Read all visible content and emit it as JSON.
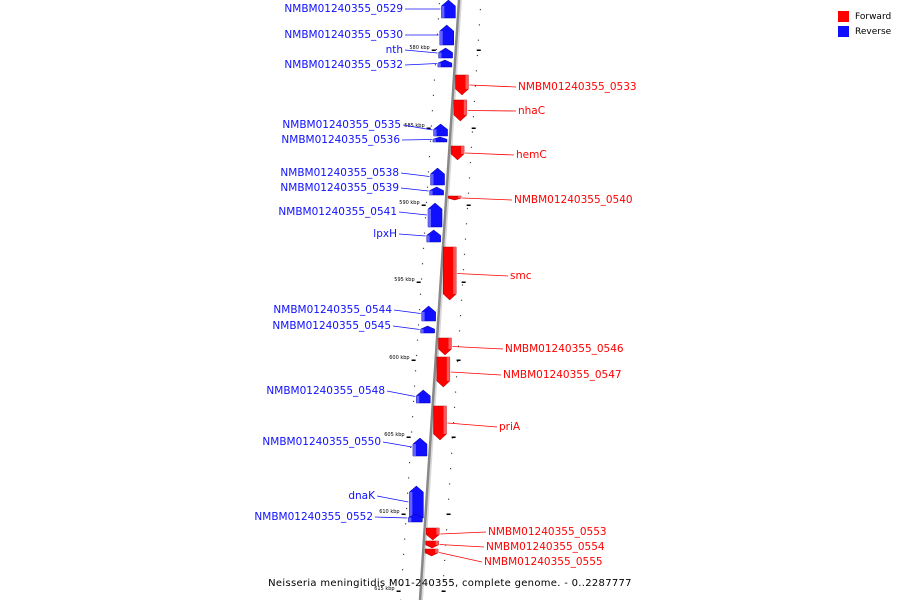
{
  "colors": {
    "forward": "#ff0000",
    "reverse": "#1010ff",
    "backbone": "#888888"
  },
  "legend": [
    {
      "label": "Forward",
      "color": "#ff0000"
    },
    {
      "label": "Reverse",
      "color": "#1010ff"
    }
  ],
  "ticks": [
    {
      "label": "580 kbp"
    },
    {
      "label": "585 kbp"
    },
    {
      "label": "590 kbp"
    },
    {
      "label": "595 kbp"
    },
    {
      "label": "600 kbp"
    },
    {
      "label": "605 kbp"
    },
    {
      "label": "610 kbp"
    },
    {
      "label": "615 kbp"
    }
  ],
  "genes": [
    {
      "name": "NMBM01240355_0529",
      "strand": "reverse"
    },
    {
      "name": "NMBM01240355_0530",
      "strand": "reverse"
    },
    {
      "name": "nth",
      "strand": "reverse"
    },
    {
      "name": "NMBM01240355_0532",
      "strand": "reverse"
    },
    {
      "name": "NMBM01240355_0533",
      "strand": "forward"
    },
    {
      "name": "nhaC",
      "strand": "forward"
    },
    {
      "name": "NMBM01240355_0535",
      "strand": "reverse"
    },
    {
      "name": "NMBM01240355_0536",
      "strand": "reverse"
    },
    {
      "name": "hemC",
      "strand": "forward"
    },
    {
      "name": "NMBM01240355_0538",
      "strand": "reverse"
    },
    {
      "name": "NMBM01240355_0539",
      "strand": "reverse"
    },
    {
      "name": "NMBM01240355_0540",
      "strand": "forward"
    },
    {
      "name": "NMBM01240355_0541",
      "strand": "reverse"
    },
    {
      "name": "lpxH",
      "strand": "reverse"
    },
    {
      "name": "smc",
      "strand": "forward"
    },
    {
      "name": "NMBM01240355_0544",
      "strand": "reverse"
    },
    {
      "name": "NMBM01240355_0545",
      "strand": "reverse"
    },
    {
      "name": "NMBM01240355_0546",
      "strand": "forward"
    },
    {
      "name": "NMBM01240355_0547",
      "strand": "forward"
    },
    {
      "name": "NMBM01240355_0548",
      "strand": "reverse"
    },
    {
      "name": "priA",
      "strand": "forward"
    },
    {
      "name": "NMBM01240355_0550",
      "strand": "reverse"
    },
    {
      "name": "dnaK",
      "strand": "reverse"
    },
    {
      "name": "NMBM01240355_0552",
      "strand": "reverse"
    },
    {
      "name": "NMBM01240355_0553",
      "strand": "forward"
    },
    {
      "name": "NMBM01240355_0554",
      "strand": "forward"
    },
    {
      "name": "NMBM01240355_0555",
      "strand": "forward"
    }
  ],
  "caption": "Neisseria meningitidis M01-240355, complete genome. - 0..2287777"
}
